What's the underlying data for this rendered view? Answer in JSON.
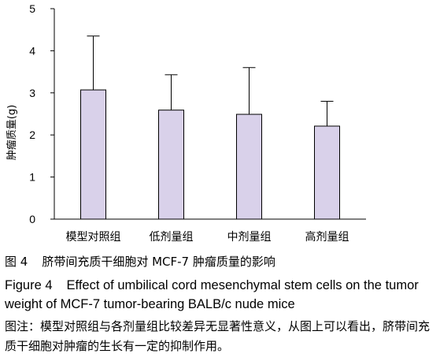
{
  "chart_data": {
    "type": "bar",
    "categories": [
      "模型对照组",
      "低剂量组",
      "中剂量组",
      "高剂量组"
    ],
    "values": [
      3.07,
      2.59,
      2.49,
      2.21
    ],
    "error_upper": [
      4.35,
      3.43,
      3.6,
      2.8
    ],
    "title": "",
    "xlabel": "",
    "ylabel": "肿瘤质量(g)",
    "ylim": [
      0,
      5
    ],
    "yticks": [
      0,
      1,
      2,
      3,
      4,
      5
    ],
    "grid": false,
    "bar_color": "#d9d1ea",
    "bar_edge_color": "#000000"
  },
  "caption": {
    "cn_label": "图 4",
    "cn_text": "脐带间充质干细胞对 MCF-7 肿瘤质量的影响",
    "en_label": "Figure 4",
    "en_text": "Effect of umbilical cord mesenchymal stem cells on the tumor weight of MCF-7 tumor-bearing BALB/c nude mice",
    "note": "图注：模型对照组与各剂量组比较差异无显著性意义，从图上可以看出，脐带间充质干细胞对肿瘤的生长有一定的抑制作用。"
  }
}
